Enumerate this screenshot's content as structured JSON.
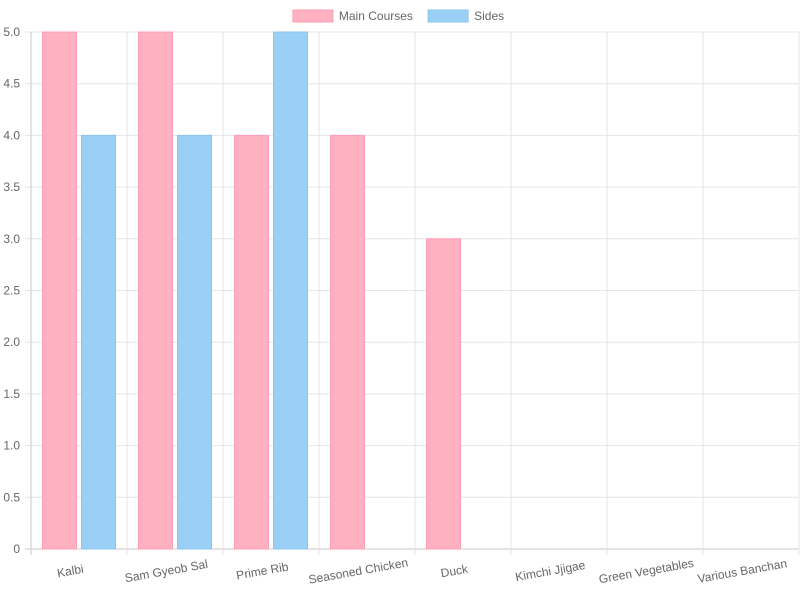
{
  "chart_data": {
    "type": "bar",
    "categories": [
      "Kalbi",
      "Sam Gyeob Sal",
      "Prime Rib",
      "Seasoned Chicken",
      "Duck",
      "Kimchi Jjigae",
      "Green Vegetables",
      "Various Banchan"
    ],
    "series": [
      {
        "name": "Main Courses",
        "color": "#ffb0c1",
        "border_color": "#ff9fb6",
        "values": [
          5,
          5,
          4,
          4,
          3,
          null,
          null,
          null
        ]
      },
      {
        "name": "Sides",
        "color": "#9ad0f5",
        "border_color": "#8ac6f2",
        "values": [
          4,
          4,
          5,
          null,
          null,
          null,
          null,
          null
        ]
      }
    ],
    "ylim": [
      0,
      5
    ],
    "yticks": [
      "0",
      "0.5",
      "1.0",
      "1.5",
      "2.0",
      "2.5",
      "3.0",
      "3.5",
      "4.0",
      "4.5",
      "5.0"
    ],
    "grid": true,
    "legend_position": "top"
  }
}
